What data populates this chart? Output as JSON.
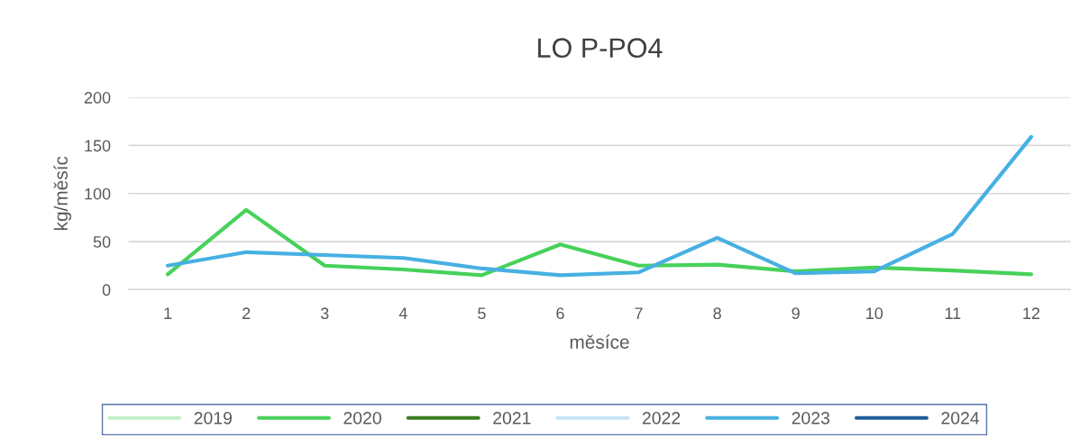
{
  "chart_data": {
    "type": "line",
    "title": "LO P-PO4",
    "xlabel": "měsíce",
    "ylabel": "kg/měsíc",
    "categories": [
      "1",
      "2",
      "3",
      "4",
      "5",
      "6",
      "7",
      "8",
      "9",
      "10",
      "11",
      "12"
    ],
    "ylim": [
      0,
      200
    ],
    "yticks": [
      0,
      50,
      100,
      150,
      200
    ],
    "grid": "y",
    "legend": "bottom",
    "marker": "none",
    "line_style": "solid",
    "series": [
      {
        "name": "2019",
        "color": "#c2eec7",
        "values": [
          null,
          null,
          null,
          null,
          null,
          null,
          null,
          null,
          null,
          null,
          null,
          null
        ]
      },
      {
        "name": "2020",
        "color": "#47d15a",
        "values": [
          16,
          83,
          25,
          21,
          15,
          47,
          25,
          26,
          19,
          23,
          20,
          16
        ]
      },
      {
        "name": "2021",
        "color": "#3a7d22",
        "values": [
          null,
          null,
          null,
          null,
          null,
          null,
          null,
          null,
          null,
          null,
          null,
          null
        ]
      },
      {
        "name": "2022",
        "color": "#c5e3f4",
        "values": [
          null,
          null,
          null,
          null,
          null,
          null,
          null,
          null,
          null,
          null,
          null,
          null
        ]
      },
      {
        "name": "2023",
        "color": "#47b0e2",
        "values": [
          25,
          39,
          36,
          33,
          22,
          15,
          18,
          54,
          17,
          19,
          58,
          159
        ]
      },
      {
        "name": "2024",
        "color": "#1f5c99",
        "values": [
          null,
          null,
          null,
          null,
          null,
          null,
          null,
          null,
          null,
          null,
          null,
          null
        ]
      }
    ]
  }
}
